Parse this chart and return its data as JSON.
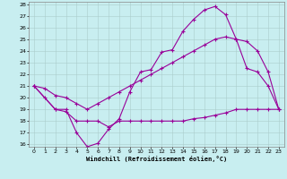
{
  "xlabel": "Windchill (Refroidissement éolien,°C)",
  "bg_color": "#c8eef0",
  "line_color": "#990099",
  "grid_color": "#aacccc",
  "xmin": 0,
  "xmax": 23,
  "ymin": 16,
  "ymax": 28,
  "yticks": [
    16,
    17,
    18,
    19,
    20,
    21,
    22,
    23,
    24,
    25,
    26,
    27,
    28
  ],
  "xticks": [
    0,
    1,
    2,
    3,
    4,
    5,
    6,
    7,
    8,
    9,
    10,
    11,
    12,
    13,
    14,
    15,
    16,
    17,
    18,
    19,
    20,
    21,
    22,
    23
  ],
  "line1_x": [
    0,
    1,
    2,
    3,
    4,
    5,
    6,
    7,
    8,
    9,
    10,
    11,
    12,
    13,
    14,
    15,
    16,
    17,
    18,
    19,
    20,
    21,
    22,
    23
  ],
  "line1_y": [
    21,
    20,
    19,
    19,
    17,
    15.8,
    16.1,
    17.3,
    18.2,
    20.5,
    22.2,
    22.4,
    23.9,
    24.1,
    25.7,
    26.7,
    27.5,
    27.8,
    27.1,
    25.0,
    22.5,
    22.2,
    21.0,
    19.0
  ],
  "line2_x": [
    0,
    1,
    2,
    3,
    4,
    5,
    6,
    7,
    8,
    9,
    10,
    11,
    12,
    13,
    14,
    15,
    16,
    17,
    18,
    19,
    20,
    21,
    22,
    23
  ],
  "line2_y": [
    21,
    20.8,
    20.2,
    20.0,
    19.5,
    19.0,
    19.5,
    20.0,
    20.5,
    21.0,
    21.5,
    22.0,
    22.5,
    23.0,
    23.5,
    24.0,
    24.5,
    25.0,
    25.2,
    25.0,
    24.8,
    24.0,
    22.2,
    19.0
  ],
  "line3_x": [
    0,
    2,
    3,
    4,
    5,
    6,
    7,
    8,
    9,
    10,
    11,
    12,
    13,
    14,
    15,
    16,
    17,
    18,
    19,
    20,
    21,
    22,
    23
  ],
  "line3_y": [
    21,
    19,
    18.8,
    18.0,
    18.0,
    18.0,
    17.5,
    18.0,
    18.0,
    18.0,
    18.0,
    18.0,
    18.0,
    18.0,
    18.2,
    18.3,
    18.5,
    18.7,
    19.0,
    19.0,
    19.0,
    19.0,
    19.0
  ]
}
